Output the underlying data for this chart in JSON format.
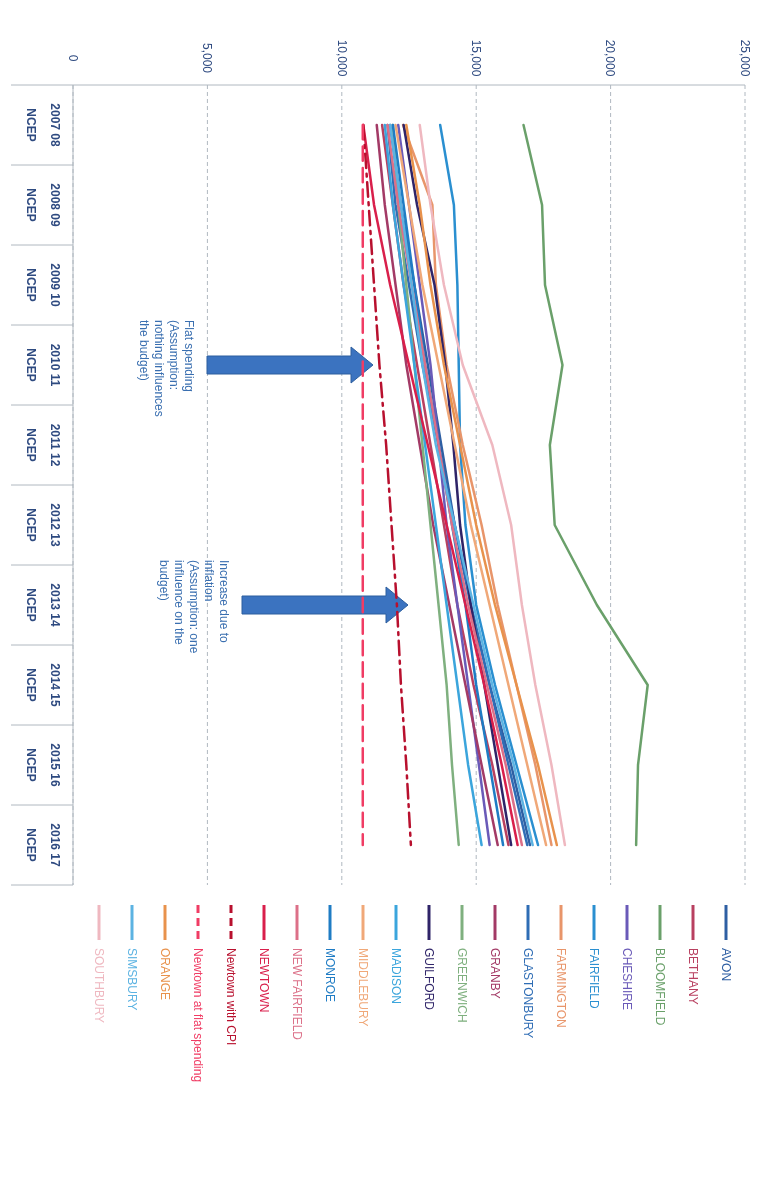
{
  "chart_data": {
    "type": "line",
    "categories": [
      "2007 08\nNCEP",
      "2008 09\nNCEP",
      "2009 10\nNCEP",
      "2010 11\nNCEP",
      "2011 12\nNCEP",
      "2012 13\nNCEP",
      "2013 14\nNCEP",
      "2014 15\nNCEP",
      "2015 16\nNCEP",
      "2016 17\nNCEP"
    ],
    "orientation": "horizontal",
    "xlim": [
      0,
      25000
    ],
    "xticks": [
      {
        "value": 0,
        "label": "0"
      },
      {
        "value": 5000,
        "label": "5,000"
      },
      {
        "value": 10000,
        "label": "10,000"
      },
      {
        "value": 15000,
        "label": "15,000"
      },
      {
        "value": 20000,
        "label": "20,000"
      },
      {
        "value": 25000,
        "label": "25,000"
      }
    ],
    "grid": "x",
    "legend": "bottom",
    "line_style": "solid",
    "annotations": [
      "Flat spending (Assumption: nothing influences the budget)",
      "Increase due to inflation (Assumption: one influence on the budget)"
    ],
    "series": [
      {
        "name": "AVON",
        "color": "#2e5fa3",
        "values": [
          11800,
          12200,
          12700,
          13200,
          13700,
          14200,
          14800,
          15500,
          16300,
          17000
        ]
      },
      {
        "name": "BETHANY",
        "color": "#b84060",
        "values": [
          11500,
          11900,
          12300,
          12800,
          13300,
          13800,
          14300,
          14900,
          15600,
          16200
        ]
      },
      {
        "name": "BLOOMFIELD",
        "color": "#6aa06a",
        "values": [
          16760,
          17450,
          17560,
          18210,
          17740,
          17920,
          19490,
          21380,
          21020,
          20950
        ]
      },
      {
        "name": "CHESHIRE",
        "color": "#6a5ab8",
        "values": [
          12100,
          12500,
          12900,
          13300,
          13600,
          13900,
          14300,
          14700,
          15100,
          15500
        ]
      },
      {
        "name": "FAIRFIELD",
        "color": "#2a8fd0",
        "values": [
          13660,
          14170,
          14300,
          14350,
          14400,
          14600,
          15000,
          15700,
          16500,
          17300
        ]
      },
      {
        "name": "FARMINGTON",
        "color": "#e8956a",
        "values": [
          12280,
          13370,
          13500,
          13900,
          14500,
          15200,
          15800,
          16500,
          17200,
          17800
        ]
      },
      {
        "name": "GLASTONBURY",
        "color": "#2f6db5",
        "values": [
          11700,
          12000,
          12500,
          13000,
          13600,
          14200,
          14800,
          15500,
          16200,
          16900
        ]
      },
      {
        "name": "GRANBY",
        "color": "#a33a66",
        "values": [
          11300,
          11600,
          12000,
          12400,
          12900,
          13400,
          14000,
          14600,
          15200,
          15800
        ]
      },
      {
        "name": "GREENWICH",
        "color": "#7fb07f",
        "values": [
          11900,
          12100,
          12400,
          12700,
          13000,
          13300,
          13600,
          13900,
          14100,
          14350
        ]
      },
      {
        "name": "GUILFORD",
        "color": "#2f2468",
        "values": [
          12300,
          12800,
          13450,
          13850,
          14150,
          14400,
          14800,
          15300,
          15800,
          16300
        ]
      },
      {
        "name": "MADISON",
        "color": "#3ba5dc",
        "values": [
          11600,
          11900,
          12300,
          12700,
          13100,
          13500,
          13900,
          14300,
          14700,
          15200
        ]
      },
      {
        "name": "MIDDLEBURY",
        "color": "#f0a878",
        "values": [
          12000,
          12500,
          13000,
          13600,
          14200,
          14800,
          15500,
          16200,
          16900,
          17600
        ]
      },
      {
        "name": "MONROE",
        "color": "#1f7cc4",
        "values": [
          11900,
          12300,
          12700,
          13100,
          13600,
          14100,
          14600,
          15000,
          15500,
          16000
        ]
      },
      {
        "name": "NEW FAIRFIELD",
        "color": "#dc7088",
        "values": [
          11700,
          12100,
          12600,
          13100,
          13600,
          14100,
          14700,
          15400,
          16100,
          16700
        ]
      },
      {
        "name": "NEWTOWN",
        "color": "#d91f4b",
        "values": [
          10800,
          11200,
          11800,
          12500,
          13200,
          13900,
          14600,
          15300,
          15950,
          16540
        ]
      },
      {
        "name": "Newtown with CPI",
        "color": "#b8102e",
        "line_style": "dotted",
        "values": [
          10800,
          11000,
          11200,
          11400,
          11650,
          11850,
          12050,
          12200,
          12400,
          12570
        ]
      },
      {
        "name": "Newtown at flat spending",
        "color": "#f03c64",
        "line_style": "dashed",
        "values": [
          10780,
          10780,
          10780,
          10780,
          10780,
          10780,
          10780,
          10780,
          10780,
          10780
        ]
      },
      {
        "name": "ORANGE",
        "color": "#e8924c",
        "values": [
          12400,
          12900,
          13300,
          13800,
          14400,
          15000,
          15700,
          16500,
          17300,
          18000
        ]
      },
      {
        "name": "SIMSBURY",
        "color": "#5cb3e2",
        "values": [
          11800,
          12200,
          12600,
          13000,
          13500,
          14200,
          14900,
          15600,
          16400,
          17100
        ]
      },
      {
        "name": "SOUTHBURY",
        "color": "#efb8c0",
        "values": [
          12900,
          13300,
          13800,
          14500,
          15600,
          16300,
          16700,
          17200,
          17800,
          18300
        ]
      }
    ]
  }
}
